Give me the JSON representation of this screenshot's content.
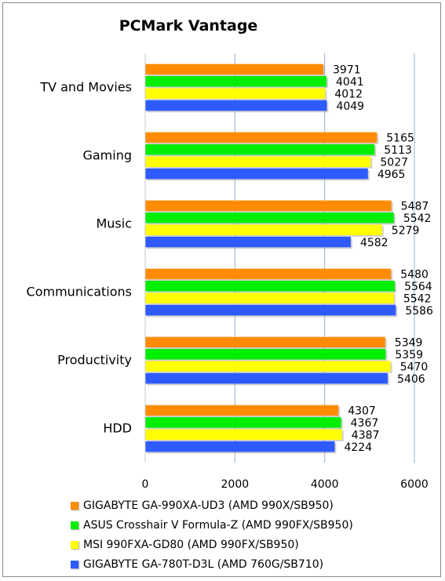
{
  "chart_data": {
    "type": "bar",
    "orientation": "horizontal",
    "title": "PCMark Vantage",
    "xlabel": "",
    "ylabel": "",
    "xlim": [
      0,
      6000
    ],
    "xticks": [
      0,
      2000,
      4000,
      6000
    ],
    "grid": "vertical",
    "legend_position": "bottom",
    "categories": [
      "TV and Movies",
      "Gaming",
      "Music",
      "Communications",
      "Productivity",
      "HDD"
    ],
    "series": [
      {
        "name": "GIGABYTE GA-990XA-UD3 (AMD 990X/SB950)",
        "color": "#ff8c00",
        "values": [
          3971,
          5165,
          5487,
          5480,
          5349,
          4307
        ]
      },
      {
        "name": "ASUS Crosshair V Formula-Z (AMD 990FX/SB950)",
        "color": "#00ee00",
        "values": [
          4041,
          5113,
          5542,
          5564,
          5359,
          4367
        ]
      },
      {
        "name": "MSI 990FXA-GD80 (AMD 990FX/SB950)",
        "color": "#ffff00",
        "values": [
          4012,
          5027,
          5279,
          5542,
          5470,
          4387
        ]
      },
      {
        "name": "GIGABYTE GA-780T-D3L (AMD 760G/SB710)",
        "color": "#2e5bff",
        "values": [
          4049,
          4965,
          4582,
          5586,
          5406,
          4224
        ]
      }
    ]
  }
}
